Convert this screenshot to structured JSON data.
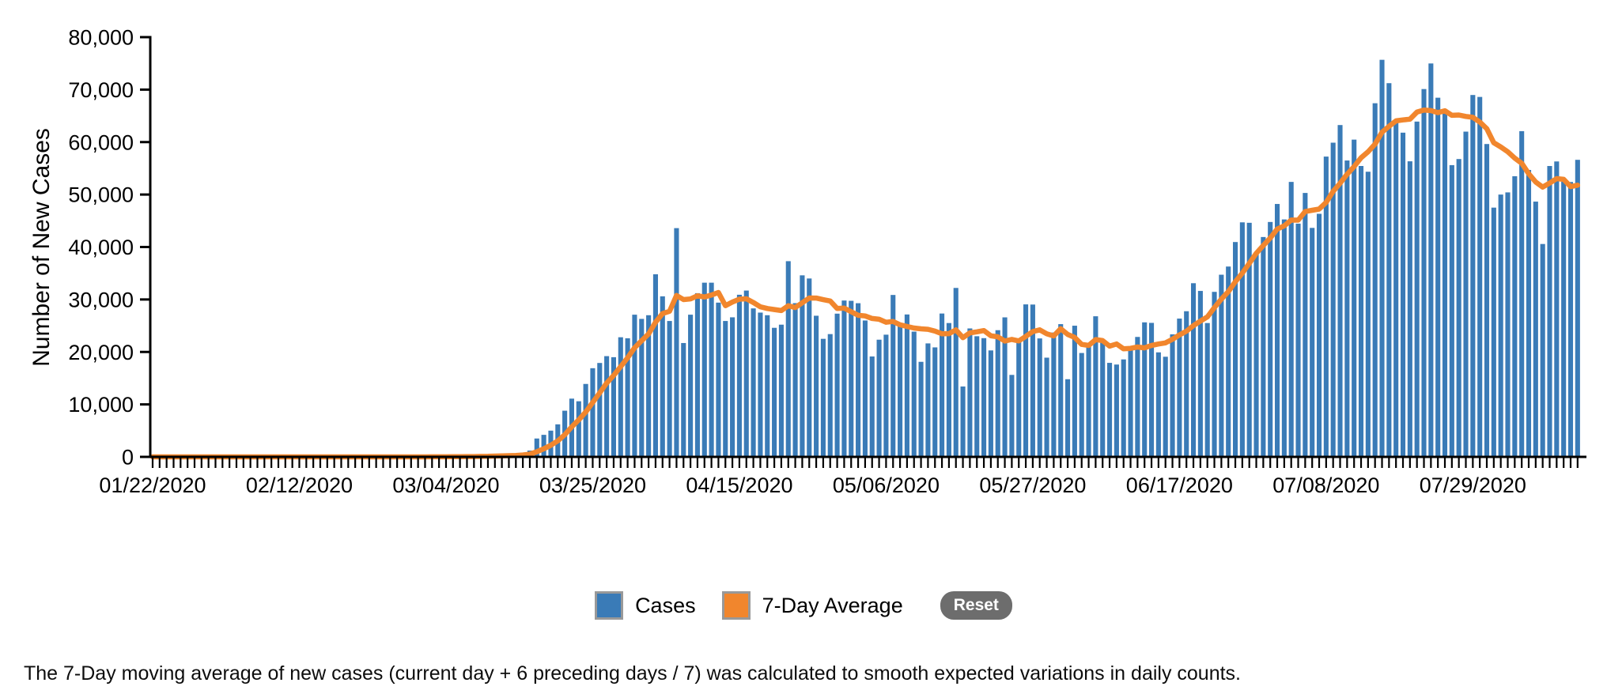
{
  "chart_data": {
    "type": "bar",
    "title": "",
    "xlabel": "",
    "ylabel": "Number of New Cases",
    "ylim": [
      0,
      80000
    ],
    "grid": false,
    "legend_position": "bottom-center",
    "start_date": "01/22/2020",
    "end_date": "08/13/2020",
    "x_tick_labels": [
      "01/22/2020",
      "02/12/2020",
      "03/04/2020",
      "03/25/2020",
      "04/15/2020",
      "05/06/2020",
      "05/27/2020",
      "06/17/2020",
      "07/08/2020",
      "07/29/2020"
    ],
    "x_tick_interval_days": 21,
    "y_tick_values": [
      0,
      10000,
      20000,
      30000,
      40000,
      50000,
      60000,
      70000,
      80000
    ],
    "y_tick_labels": [
      "0",
      "10,000",
      "20,000",
      "30,000",
      "40,000",
      "50,000",
      "60,000",
      "70,000",
      "80,000"
    ],
    "series": [
      {
        "name": "Cases",
        "type": "bar",
        "color": "#3A7BB7",
        "values": [
          1,
          0,
          1,
          0,
          3,
          0,
          0,
          0,
          2,
          0,
          3,
          0,
          0,
          0,
          0,
          2,
          0,
          0,
          0,
          2,
          1,
          0,
          1,
          2,
          0,
          0,
          0,
          0,
          3,
          0,
          1,
          0,
          2,
          0,
          0,
          6,
          1,
          5,
          7,
          24,
          20,
          31,
          68,
          45,
          119,
          114,
          64,
          147,
          225,
          290,
          278,
          414,
          530,
          680,
          1200,
          3500,
          4200,
          5000,
          6200,
          8800,
          11100,
          10600,
          13900,
          16900,
          17900,
          19200,
          19000,
          22800,
          22600,
          27100,
          26300,
          27000,
          34800,
          30600,
          25900,
          43600,
          21700,
          27100,
          31200,
          33200,
          33200,
          29400,
          25900,
          26600,
          30900,
          31700,
          28300,
          27500,
          27000,
          24600,
          25200,
          37300,
          29300,
          34600,
          34000,
          26900,
          22500,
          23400,
          27300,
          29800,
          29744,
          29288,
          25995,
          19138,
          22335,
          23290,
          30861,
          25280,
          27143,
          23872,
          18117,
          21628,
          20869,
          27324,
          25508,
          32200,
          13416,
          24481,
          22994,
          22630,
          20289,
          24147,
          26590,
          15623,
          22414,
          29064,
          29034,
          22577,
          18910,
          23700,
          25300,
          14800,
          25000,
          19800,
          21140,
          26800,
          22303,
          17919,
          17598,
          18577,
          20486,
          22860,
          25641,
          25540,
          19920,
          19084,
          23351,
          26357,
          27762,
          33100,
          31629,
          25509,
          31452,
          34719,
          36277,
          40949,
          44702,
          44616,
          38817,
          41904,
          44772,
          48204,
          45255,
          52410,
          44454,
          50304,
          43644,
          46329,
          57236,
          59886,
          63247,
          56489,
          60469,
          55442,
          54349,
          67404,
          75682,
          71229,
          63698,
          61795,
          56336,
          63907,
          70106,
          74985,
          68457,
          66281,
          55607,
          56768,
          61992,
          68974,
          68605,
          59629,
          47508,
          49996,
          50409,
          53494,
          62083,
          54689,
          48654,
          40576,
          55440,
          56307,
          52479,
          52395,
          56618
        ]
      },
      {
        "name": "7-Day Average",
        "type": "line",
        "color": "#F1862D",
        "derived_from": "Cases",
        "definition": "7-day moving average: (current day + 6 preceding days) / 7"
      }
    ]
  },
  "legend": {
    "cases_label": "Cases",
    "avg_label": "7-Day Average",
    "reset_label": "Reset",
    "swatch_border_color": "#999999",
    "reset_bg_color": "#6D6D6D",
    "reset_text_color": "#ffffff"
  },
  "footnote": "The 7-Day moving average of new cases (current day + 6 preceding days / 7) was calculated to smooth expected variations in daily counts."
}
